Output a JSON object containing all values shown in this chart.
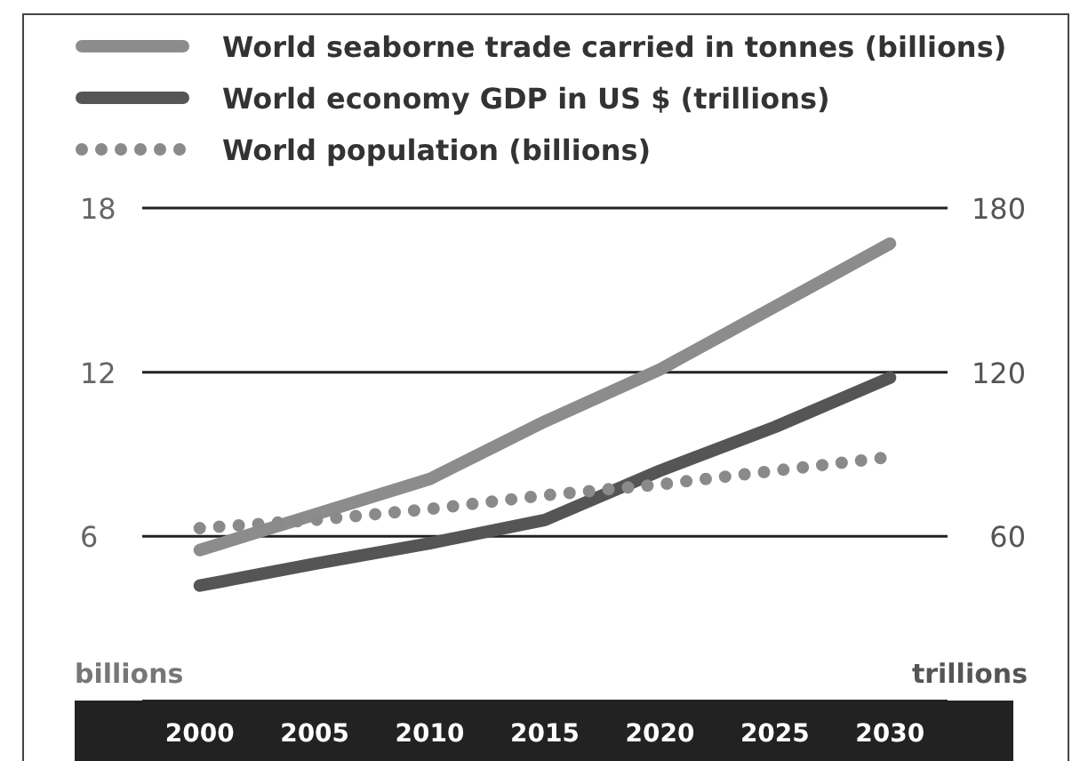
{
  "chart_data": {
    "type": "line",
    "x": [
      2000,
      2005,
      2010,
      2015,
      2020,
      2025,
      2030
    ],
    "xlim": [
      1997.5,
      2032.5
    ],
    "xticks": [
      2000,
      2005,
      2010,
      2015,
      2020,
      2025,
      2030
    ],
    "ylim": [
      0,
      18
    ],
    "yticks": [
      6,
      12,
      18
    ],
    "y2lim": [
      0,
      180
    ],
    "y2ticks": [
      60,
      120,
      180
    ],
    "ylabel": "billions",
    "y2label": "trillions",
    "grid": "y",
    "legend": "top",
    "series": [
      {
        "name": "World seaborne trade carried in tonnes (billions)",
        "color": "#8c8c8c",
        "line_style": "solid",
        "values": [
          5.5,
          6.8,
          8.1,
          10.2,
          12.1,
          14.4,
          16.7
        ]
      },
      {
        "name": "World economy GDP in US $ (trillions)",
        "color": "#555555",
        "line_style": "solid",
        "axis": "y2",
        "values": [
          42,
          50,
          57.5,
          66,
          84,
          100,
          118
        ]
      },
      {
        "name": "World population (billions)",
        "color": "#8a8a8a",
        "line_style": "dotted",
        "values": [
          6.3,
          6.6,
          7.0,
          7.5,
          7.9,
          8.4,
          8.9
        ]
      }
    ]
  }
}
